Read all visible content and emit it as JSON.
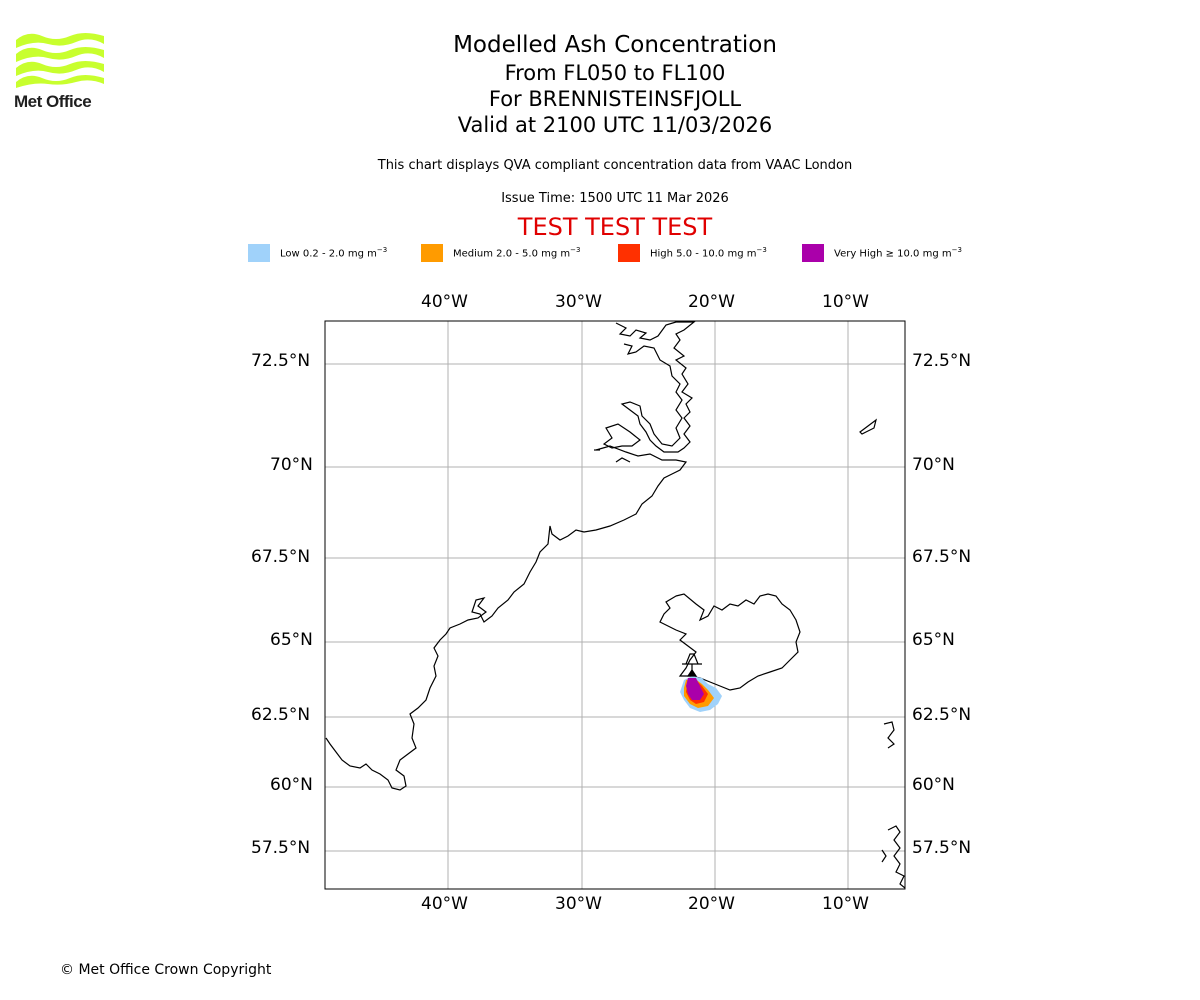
{
  "logo": {
    "name": "Met Office",
    "text": "Met Office"
  },
  "title": {
    "main": "Modelled Ash Concentration",
    "levels": "From FL050 to FL100",
    "volcano": "For BRENNISTEINSFJOLL",
    "valid": "Valid at 2100 UTC 11/03/2026"
  },
  "notes": {
    "compliance": "This chart displays QVA compliant concentration data from VAAC London",
    "issue_time": "Issue Time: 1500 UTC 11 Mar 2026",
    "test_banner": "TEST TEST TEST"
  },
  "legend": [
    {
      "label": "Low 0.2 - 2.0 mg m",
      "exp": "−3",
      "color": "#a0d2fa"
    },
    {
      "label": "Medium 2.0 - 5.0 mg m",
      "exp": "−3",
      "color": "#ff9b00"
    },
    {
      "label": "High 5.0 - 10.0 mg m",
      "exp": "−3",
      "color": "#ff3000"
    },
    {
      "label": "Very High  ≥  10.0 mg m",
      "exp": "−3",
      "color": "#aa00aa"
    }
  ],
  "axes": {
    "lon_ticks": [
      "40°W",
      "30°W",
      "20°W",
      "10°W"
    ],
    "lat_ticks": [
      "72.5°N",
      "70°N",
      "67.5°N",
      "65°N",
      "62.5°N",
      "60°N",
      "57.5°N"
    ]
  },
  "colors": {
    "test_banner": "#e00000",
    "logo": "#c8ff2e",
    "grid": "#b0b0b0",
    "coastline": "#000000"
  },
  "copyright": "© Met Office Crown Copyright"
}
